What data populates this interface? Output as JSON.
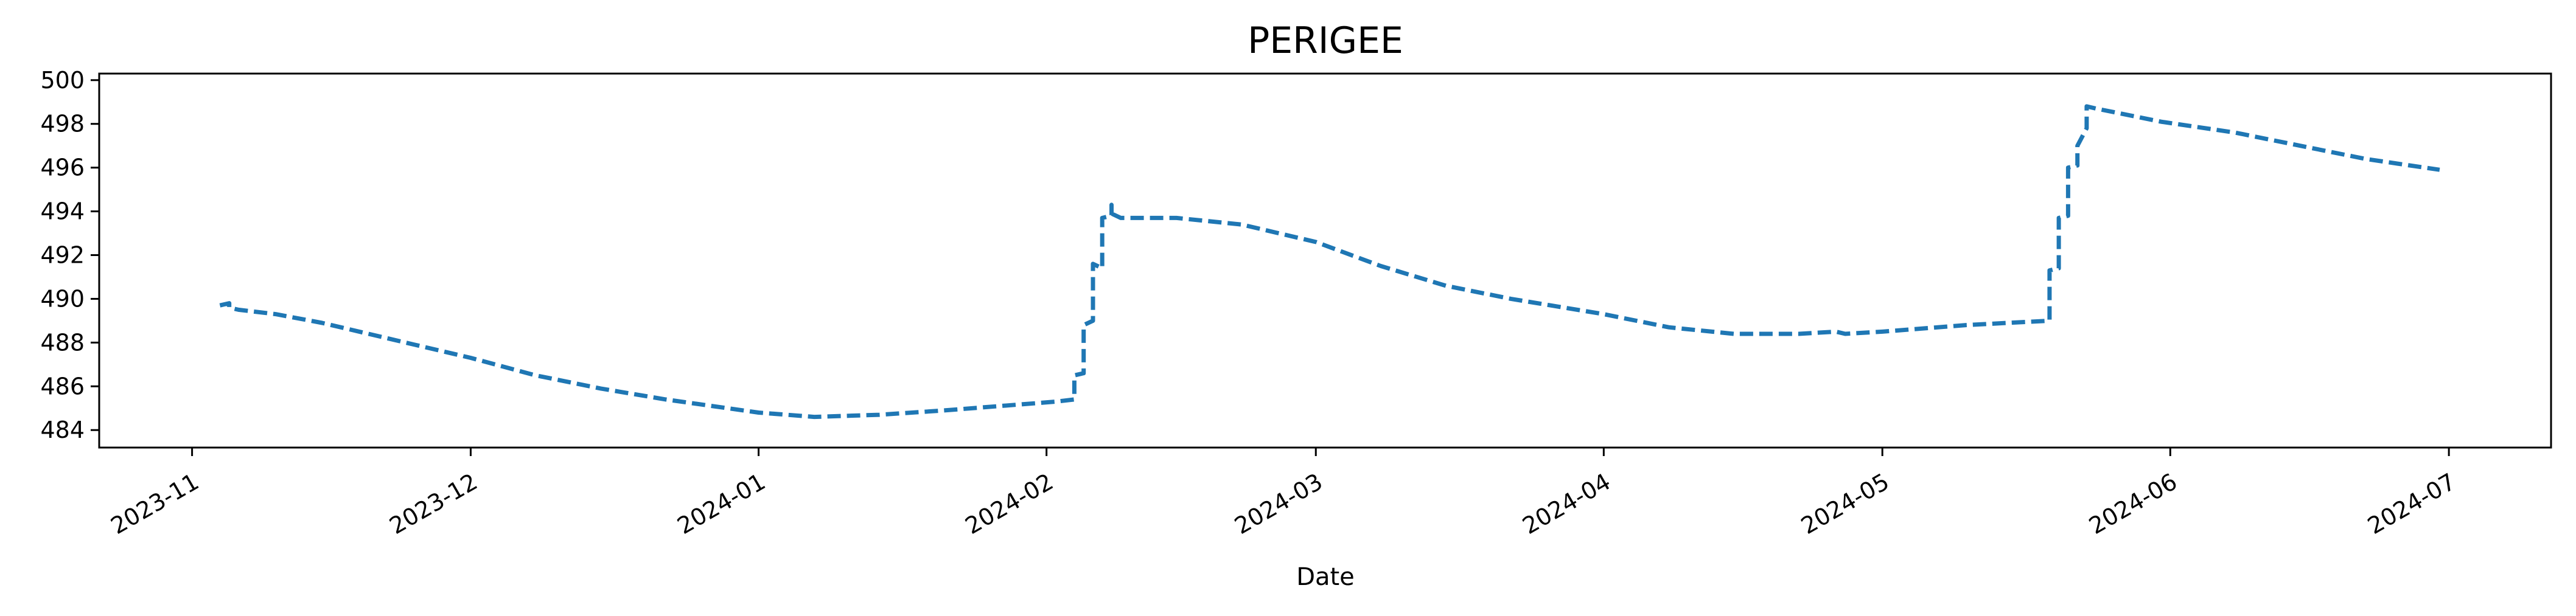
{
  "chart_data": {
    "type": "line",
    "title": "PERIGEE",
    "xlabel": "Date",
    "ylabel": "",
    "x_ticks": [
      "2023-11",
      "2023-12",
      "2024-01",
      "2024-02",
      "2024-03",
      "2024-04",
      "2024-05",
      "2024-06",
      "2024-07"
    ],
    "x_tick_rotation_deg": 30,
    "xlim": [
      "2023-10-22",
      "2024-07-12"
    ],
    "y_ticks": [
      484,
      486,
      488,
      490,
      492,
      494,
      496,
      498,
      500
    ],
    "ylim": [
      483.2,
      500.3
    ],
    "grid": false,
    "line_style": "dashed",
    "color": "#1f77b4",
    "series": [
      {
        "x": [
          "2023-11-04",
          "2023-11-05",
          "2023-11-05",
          "2023-11-06",
          "2023-11-10",
          "2023-11-15",
          "2023-11-20",
          "2023-11-25",
          "2023-12-01",
          "2023-12-08",
          "2023-12-15",
          "2023-12-22",
          "2024-01-01",
          "2024-01-07",
          "2024-01-14",
          "2024-01-21",
          "2024-01-27",
          "2024-02-02",
          "2024-02-04",
          "2024-02-04",
          "2024-02-05",
          "2024-02-05",
          "2024-02-06",
          "2024-02-06",
          "2024-02-07",
          "2024-02-07",
          "2024-02-08",
          "2024-02-08",
          "2024-02-08",
          "2024-02-09",
          "2024-02-15",
          "2024-02-22",
          "2024-03-01",
          "2024-03-08",
          "2024-03-15",
          "2024-03-22",
          "2024-04-01",
          "2024-04-08",
          "2024-04-15",
          "2024-04-22",
          "2024-04-26",
          "2024-04-27",
          "2024-05-01",
          "2024-05-10",
          "2024-05-19",
          "2024-05-19",
          "2024-05-20",
          "2024-05-20",
          "2024-05-21",
          "2024-05-21",
          "2024-05-22",
          "2024-05-22",
          "2024-05-23",
          "2024-05-23",
          "2024-05-24",
          "2024-05-31",
          "2024-06-08",
          "2024-06-15",
          "2024-06-22",
          "2024-06-30"
        ],
        "y": [
          489.7,
          489.8,
          489.6,
          489.5,
          489.3,
          488.9,
          488.4,
          487.9,
          487.3,
          486.5,
          485.9,
          485.4,
          484.8,
          484.6,
          484.7,
          484.9,
          485.1,
          485.3,
          485.4,
          486.5,
          486.6,
          488.8,
          489.0,
          491.6,
          491.4,
          493.7,
          493.8,
          494.3,
          493.9,
          493.7,
          493.7,
          493.4,
          492.6,
          491.5,
          490.6,
          490.0,
          489.3,
          488.7,
          488.4,
          488.4,
          488.5,
          488.4,
          488.5,
          488.8,
          489.0,
          491.3,
          491.4,
          493.7,
          493.8,
          496.0,
          496.1,
          497.0,
          497.8,
          498.8,
          498.7,
          498.1,
          497.6,
          497.0,
          496.4,
          495.9
        ]
      }
    ]
  }
}
